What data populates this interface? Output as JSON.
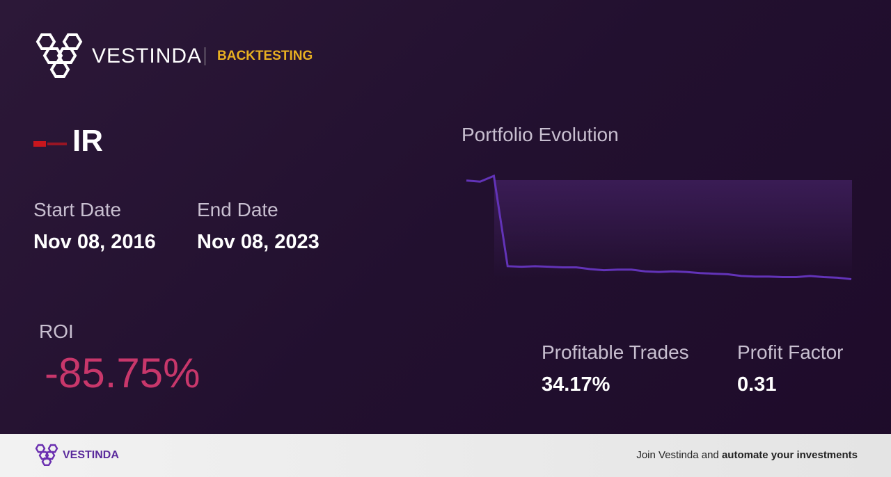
{
  "header": {
    "brand": "VESTINDA",
    "section": "BACKTESTING"
  },
  "ticker": "IR",
  "start_date": {
    "label": "Start Date",
    "value": "Nov 08, 2016"
  },
  "end_date": {
    "label": "End Date",
    "value": "Nov 08, 2023"
  },
  "roi": {
    "label": "ROI",
    "value": "-85.75%"
  },
  "profitable_trades": {
    "label": "Profitable Trades",
    "value": "34.17%"
  },
  "profit_factor": {
    "label": "Profit Factor",
    "value": "0.31"
  },
  "chart_data": {
    "type": "line",
    "title": "Portfolio Evolution",
    "color": "#6233b8",
    "values": [
      100,
      99,
      104,
      25.5,
      25,
      25.5,
      25,
      24.5,
      24.5,
      23,
      22,
      22.5,
      22.5,
      21,
      20.5,
      21,
      20.5,
      19.5,
      19,
      18.5,
      17,
      16.5,
      16.5,
      16,
      16,
      17,
      16,
      15.5,
      14.25
    ],
    "ylim": [
      0,
      104
    ]
  },
  "footer": {
    "brand": "VESTINDA",
    "text": "Join Vestinda and",
    "bold": "automate your investments"
  }
}
